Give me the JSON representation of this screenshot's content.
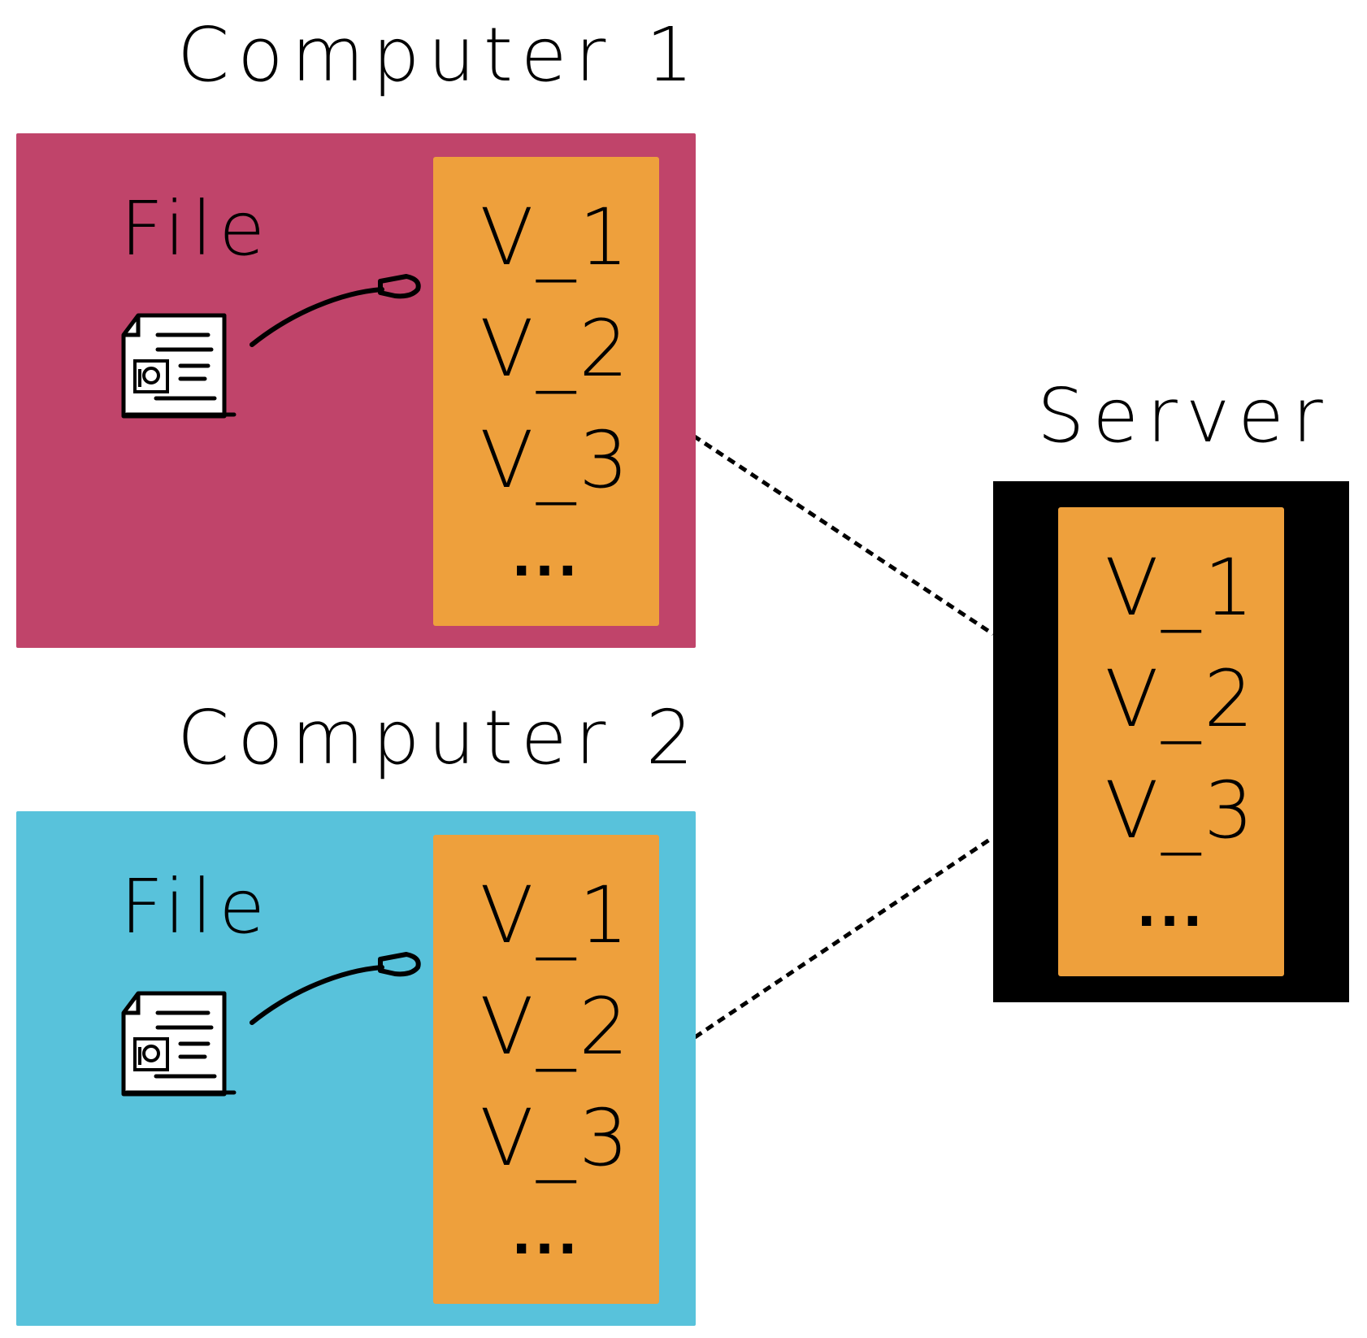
{
  "colors": {
    "computer1_bg": "#C0446A",
    "computer2_bg": "#58C2DB",
    "server_bg": "#000000",
    "versions_bg": "#EEA03C",
    "link_line": "#000000"
  },
  "computer1": {
    "title": "Computer 1",
    "file_label": "File",
    "file_icon": "document-icon",
    "versions": [
      "V_1",
      "V_2",
      "V_3"
    ],
    "more": "..."
  },
  "computer2": {
    "title": "Computer 2",
    "file_label": "File",
    "file_icon": "document-icon",
    "versions": [
      "V_1",
      "V_2",
      "V_3"
    ],
    "more": "..."
  },
  "server": {
    "title": "Server",
    "versions": [
      "V_1",
      "V_2",
      "V_3"
    ],
    "more": "..."
  }
}
